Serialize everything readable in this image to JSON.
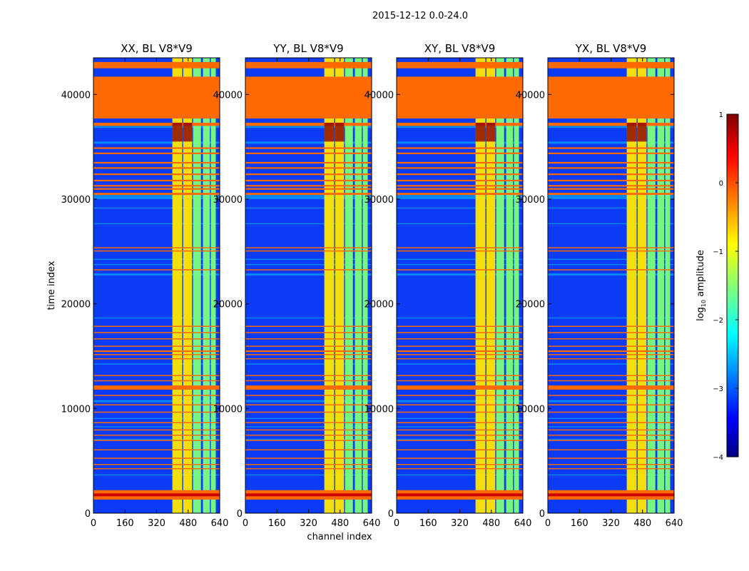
{
  "figure": {
    "suptitle": "2015-12-12 0.0-24.0",
    "xlabel": "channel index",
    "ylabel": "time index",
    "colorbar_label": "log",
    "colorbar_label_sub": "10",
    "colorbar_label_rest": " amplitude"
  },
  "chart_data": {
    "type": "heatmap",
    "colormap": "jet",
    "x_range": [
      0,
      640
    ],
    "y_range": [
      0,
      43500
    ],
    "x_ticks": [
      0,
      160,
      320,
      480,
      640
    ],
    "x_tick_labels": [
      "0",
      "160",
      "320",
      "480",
      "640"
    ],
    "y_ticks": [
      0,
      10000,
      20000,
      30000,
      40000
    ],
    "y_tick_labels": [
      "0",
      "10000",
      "20000",
      "30000",
      "40000"
    ],
    "color_range": [
      -4,
      1
    ],
    "colorbar_ticks": [
      1,
      0,
      -1,
      -2,
      -3,
      -4
    ],
    "colorbar_tick_labels": [
      "1",
      "0",
      "−1",
      "−2",
      "−3",
      "−4"
    ],
    "panels": [
      {
        "title": "XX, BL V8*V9",
        "polarization": "XX"
      },
      {
        "title": "YY, BL V8*V9",
        "polarization": "YY"
      },
      {
        "title": "XY, BL V8*V9",
        "polarization": "XY"
      },
      {
        "title": "YX, BL V8*V9",
        "polarization": "YX"
      }
    ],
    "colors": {
      "background": "#0b3bf5",
      "flagged": "#ff6a00",
      "speckle": "#00c8ff",
      "band_high": "#ffe600",
      "band_mid": "#7cff7c",
      "band_dark": "#8b0000"
    },
    "flagged_rows": [
      [
        42500,
        43100
      ],
      [
        37700,
        41700
      ],
      [
        37000,
        37300
      ],
      [
        34800,
        34950
      ],
      [
        34300,
        34450
      ],
      [
        33400,
        33550
      ],
      [
        32900,
        33050
      ],
      [
        32300,
        32450
      ],
      [
        31700,
        31850
      ],
      [
        31200,
        31350
      ],
      [
        30900,
        31050
      ],
      [
        30400,
        30600
      ],
      [
        25300,
        25400
      ],
      [
        25000,
        25100
      ],
      [
        23200,
        23300
      ],
      [
        17800,
        17900
      ],
      [
        17200,
        17300
      ],
      [
        16600,
        16700
      ],
      [
        15900,
        16000
      ],
      [
        15400,
        15550
      ],
      [
        15100,
        15200
      ],
      [
        14700,
        14800
      ],
      [
        13100,
        13200
      ],
      [
        12600,
        12700
      ],
      [
        11800,
        12200
      ],
      [
        11200,
        11300
      ],
      [
        10300,
        10400
      ],
      [
        9600,
        9700
      ],
      [
        8600,
        8700
      ],
      [
        7900,
        8000
      ],
      [
        7400,
        7500
      ],
      [
        6900,
        7000
      ],
      [
        6000,
        6100
      ],
      [
        5200,
        5300
      ],
      [
        4600,
        4700
      ],
      [
        4200,
        4300
      ]
    ],
    "strong_rows": [
      [
        1300,
        2200
      ]
    ],
    "speckle_rows": [
      [
        36800,
        37000
      ],
      [
        35300,
        35500
      ],
      [
        30000,
        30400
      ],
      [
        29100,
        29200
      ],
      [
        27600,
        27700
      ],
      [
        24200,
        24300
      ],
      [
        23700,
        23800
      ],
      [
        22700,
        22900
      ],
      [
        18600,
        18700
      ],
      [
        14200,
        14300
      ],
      [
        10600,
        10800
      ],
      [
        9000,
        9100
      ],
      [
        8200,
        8300
      ],
      [
        7000,
        7100
      ],
      [
        3600,
        3700
      ]
    ],
    "channel_bands": [
      {
        "range": [
          400,
          450
        ],
        "level": "high"
      },
      {
        "range": [
          455,
          500
        ],
        "level": "high"
      },
      {
        "range": [
          505,
          545
        ],
        "level": "mid"
      },
      {
        "range": [
          555,
          590
        ],
        "level": "mid"
      },
      {
        "range": [
          595,
          620
        ],
        "level": "mid"
      }
    ]
  }
}
